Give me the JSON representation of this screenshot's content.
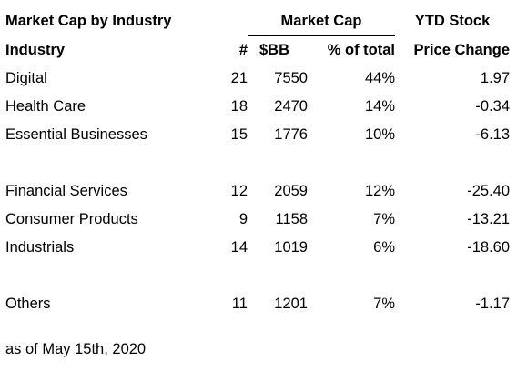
{
  "header": {
    "title": "Market Cap by Industry",
    "market_cap_group": "Market Cap",
    "ytd_group": "YTD Stock",
    "col_industry": "Industry",
    "col_count": "#",
    "col_sbb": "$BB",
    "col_pct": "% of total",
    "col_ytd": "Price Change"
  },
  "groups": [
    [
      {
        "industry": "Digital",
        "count": "21",
        "sbb": "7550",
        "pct": "44%",
        "ytd": "1.97"
      },
      {
        "industry": "Health Care",
        "count": "18",
        "sbb": "2470",
        "pct": "14%",
        "ytd": "-0.34"
      },
      {
        "industry": "Essential Businesses",
        "count": "15",
        "sbb": "1776",
        "pct": "10%",
        "ytd": "-6.13"
      }
    ],
    [
      {
        "industry": "Financial Services",
        "count": "12",
        "sbb": "2059",
        "pct": "12%",
        "ytd": "-25.40"
      },
      {
        "industry": "Consumer Products",
        "count": "9",
        "sbb": "1158",
        "pct": "7%",
        "ytd": "-13.21"
      },
      {
        "industry": "Industrials",
        "count": "14",
        "sbb": "1019",
        "pct": "6%",
        "ytd": "-18.60"
      }
    ],
    [
      {
        "industry": "Others",
        "count": "11",
        "sbb": "1201",
        "pct": "7%",
        "ytd": "-1.17"
      }
    ]
  ],
  "footnote": "as of May 15th, 2020"
}
